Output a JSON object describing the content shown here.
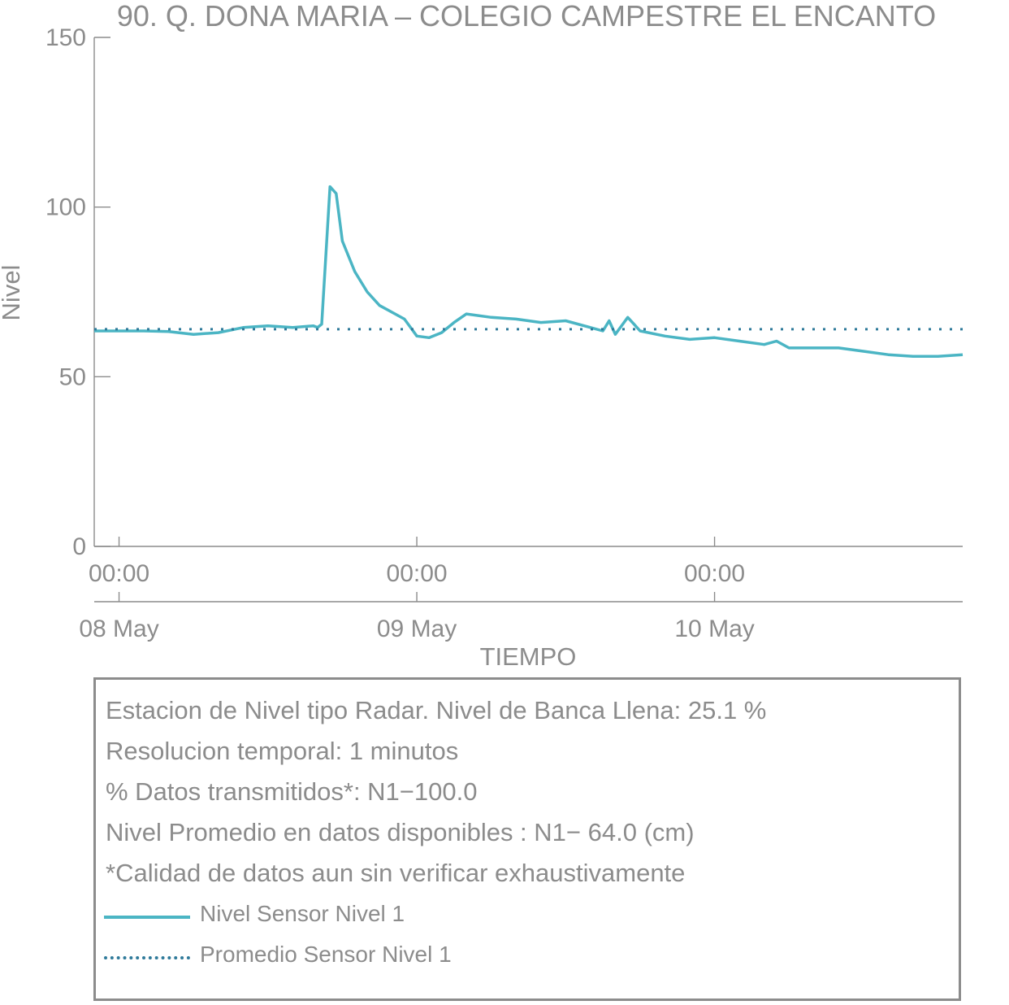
{
  "chart_data": {
    "type": "line",
    "title": "90. Q. DONA MARIA – COLEGIO CAMPESTRE EL ENCANTO",
    "xlabel": "TIEMPO",
    "ylabel": "Nivel",
    "ylim": [
      0,
      150
    ],
    "yticks": [
      "0",
      "50",
      "100",
      "150"
    ],
    "x_time_ticks": [
      "00:00",
      "00:00",
      "00:00"
    ],
    "x_date_ticks": [
      "08 May",
      "09 May",
      "10 May"
    ],
    "xlim": [
      "2024-05-07T22:00",
      "2024-05-10T20:00"
    ],
    "grid": false,
    "series": [
      {
        "name": "Nivel Sensor Nivel 1",
        "color": "#4bb5c4",
        "style": "solid",
        "x": [
          "2024-05-07T22:00",
          "2024-05-08T00:00",
          "2024-05-08T02:00",
          "2024-05-08T04:00",
          "2024-05-08T06:00",
          "2024-05-08T08:00",
          "2024-05-08T10:00",
          "2024-05-08T12:00",
          "2024-05-08T14:00",
          "2024-05-08T15:40",
          "2024-05-08T16:00",
          "2024-05-08T16:20",
          "2024-05-08T17:00",
          "2024-05-08T17:30",
          "2024-05-08T18:00",
          "2024-05-08T19:00",
          "2024-05-08T20:00",
          "2024-05-08T21:00",
          "2024-05-08T22:00",
          "2024-05-08T23:00",
          "2024-05-09T00:00",
          "2024-05-09T01:00",
          "2024-05-09T02:00",
          "2024-05-09T03:00",
          "2024-05-09T04:00",
          "2024-05-09T06:00",
          "2024-05-09T08:00",
          "2024-05-09T10:00",
          "2024-05-09T12:00",
          "2024-05-09T14:00",
          "2024-05-09T15:00",
          "2024-05-09T15:30",
          "2024-05-09T16:00",
          "2024-05-09T17:00",
          "2024-05-09T17:30",
          "2024-05-09T18:00",
          "2024-05-09T20:00",
          "2024-05-09T22:00",
          "2024-05-10T00:00",
          "2024-05-10T02:00",
          "2024-05-10T04:00",
          "2024-05-10T05:00",
          "2024-05-10T06:00",
          "2024-05-10T08:00",
          "2024-05-10T10:00",
          "2024-05-10T12:00",
          "2024-05-10T14:00",
          "2024-05-10T16:00",
          "2024-05-10T18:00",
          "2024-05-10T20:00"
        ],
        "y": [
          63.5,
          63.5,
          63.5,
          63.3,
          62.5,
          63.0,
          64.5,
          65.0,
          64.5,
          65.0,
          64.5,
          65.5,
          106,
          104,
          90,
          81,
          75,
          71,
          69,
          67,
          62,
          61.5,
          63,
          66,
          68.5,
          67.5,
          67,
          66,
          66.5,
          64.5,
          63.5,
          66.5,
          62.5,
          67.5,
          65.5,
          63.5,
          62,
          61,
          61.5,
          60.5,
          59.5,
          60.5,
          58.5,
          58.5,
          58.5,
          57.5,
          56.5,
          56,
          56,
          56.5
        ]
      },
      {
        "name": "Promedio Sensor Nivel 1",
        "color": "#2f7a9a",
        "style": "dotted",
        "x": [
          "2024-05-07T22:00",
          "2024-05-10T20:00"
        ],
        "y": [
          64.0,
          64.0
        ]
      }
    ]
  },
  "info": {
    "line1": "Estacion de Nivel tipo Radar. Nivel de Banca Llena: 25.1 %",
    "line2": "Resolucion temporal: 1 minutos",
    "line3": "% Datos transmitidos*: N1−100.0",
    "line4": "Nivel Promedio en datos disponibles : N1− 64.0 (cm)",
    "line5": "*Calidad de datos aun sin verificar exhaustivamente",
    "legend_1": "Nivel Sensor Nivel 1",
    "legend_2": "Promedio Sensor Nivel 1"
  }
}
